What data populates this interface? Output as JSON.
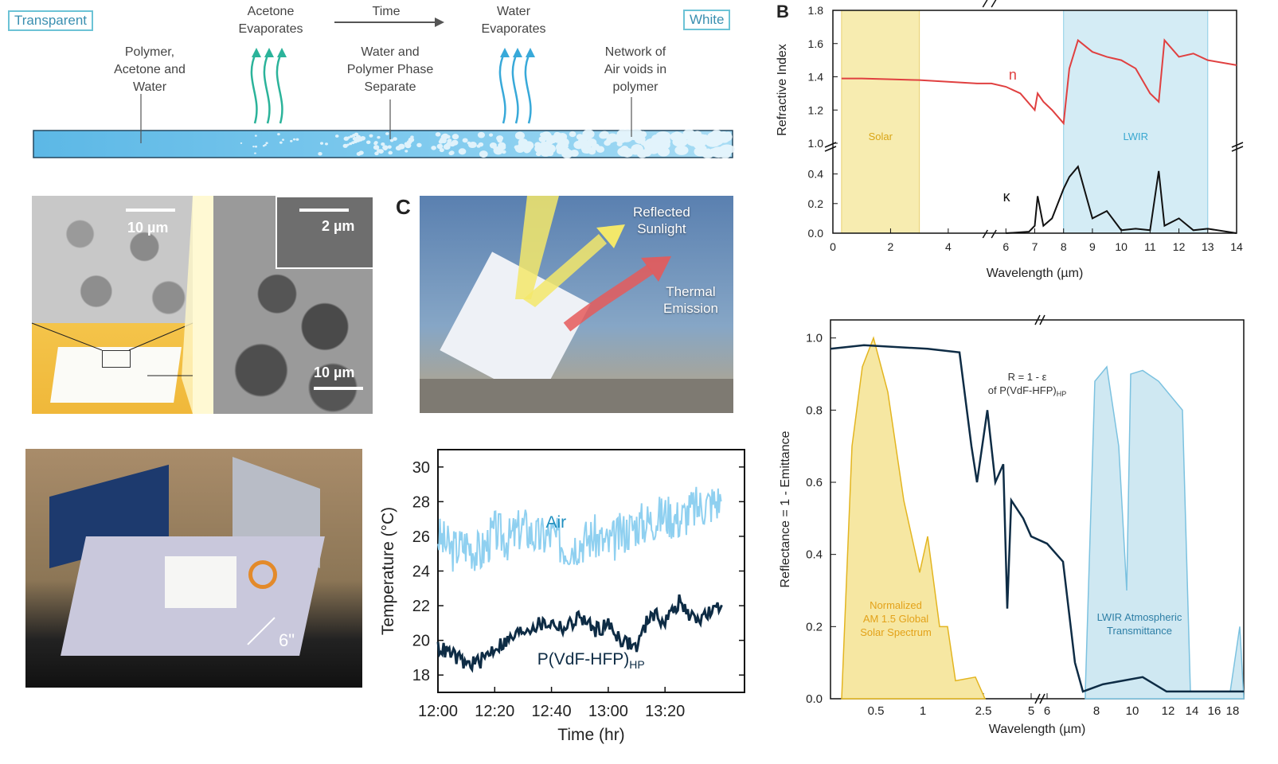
{
  "panel_a": {
    "left_label": "Transparent",
    "right_label": "White",
    "time_label": "Time",
    "step1": [
      "Polymer,",
      "Acetone and",
      "Water"
    ],
    "step2_top": [
      "Acetone",
      "Evaporates"
    ],
    "step3": [
      "Water and",
      "Polymer Phase",
      "Separate"
    ],
    "step4_top": [
      "Water",
      "Evaporates"
    ],
    "step5": [
      "Network of",
      "Air voids in",
      "polymer"
    ],
    "sem_scale_1": "10 µm",
    "sem_scale_2": "2 µm",
    "sem_scale_3": "10 µm",
    "ruler_label": "6\""
  },
  "panel_c": {
    "letter": "C",
    "reflected": [
      "Reflected",
      "Sunlight"
    ],
    "thermal": [
      "Thermal",
      "Emission"
    ]
  },
  "chart_data": [
    {
      "type": "line",
      "xlabel": "Time (hr)",
      "ylabel": "Temperature (°C)",
      "x_ticks": [
        "12:00",
        "12:20",
        "12:40",
        "13:00",
        "13:20"
      ],
      "ylim": [
        17,
        31
      ],
      "y_ticks": [
        18,
        20,
        22,
        24,
        26,
        28,
        30
      ],
      "series": [
        {
          "name": "Air",
          "color": "#8fd0f0",
          "x_minutes": [
            0,
            5,
            10,
            15,
            20,
            25,
            30,
            35,
            40,
            45,
            50,
            55,
            60,
            65,
            70,
            75,
            80,
            85,
            90,
            95,
            100
          ],
          "values": [
            26.0,
            25.2,
            25.6,
            25.0,
            26.3,
            25.8,
            26.6,
            25.9,
            26.1,
            25.4,
            25.7,
            26.0,
            25.5,
            26.2,
            26.7,
            26.9,
            27.3,
            27.0,
            27.6,
            27.9,
            28.1
          ]
        },
        {
          "name": "P(VdF-HFP)",
          "name_sub": "HP",
          "color": "#0e2c45",
          "x_minutes": [
            0,
            5,
            10,
            15,
            20,
            25,
            30,
            35,
            40,
            45,
            50,
            55,
            60,
            65,
            70,
            75,
            80,
            85,
            90,
            95,
            100
          ],
          "values": [
            19.6,
            19.2,
            18.6,
            18.8,
            19.6,
            20.0,
            20.6,
            20.9,
            21.0,
            20.7,
            21.4,
            20.6,
            20.9,
            20.0,
            19.6,
            21.6,
            21.1,
            22.2,
            21.2,
            21.5,
            21.9
          ]
        }
      ]
    },
    {
      "type": "line",
      "panel": "B",
      "xlabel": "Wavelength (µm)",
      "ylabel": "Refractive Index",
      "x_ticks": [
        0,
        2,
        4,
        6,
        7,
        8,
        9,
        10,
        11,
        12,
        13,
        14
      ],
      "n_ticks": [
        1.0,
        1.2,
        1.4,
        1.6,
        1.8
      ],
      "k_ticks": [
        0.0,
        0.2,
        0.4
      ],
      "bands": [
        {
          "label": "Solar",
          "from": 0.3,
          "to": 3.0,
          "color": "#f7ecb0"
        },
        {
          "label": "LWIR",
          "from": 8.0,
          "to": 13.0,
          "color": "#d4ecf5"
        }
      ],
      "series": [
        {
          "name": "n",
          "color": "#e04040",
          "x": [
            0.3,
            1,
            2,
            3,
            4,
            5,
            5.5,
            6,
            6.5,
            7,
            7.1,
            7.3,
            7.6,
            8,
            8.2,
            8.5,
            9,
            9.5,
            10,
            10.5,
            11,
            11.3,
            11.5,
            12,
            12.5,
            13,
            14
          ],
          "values": [
            1.39,
            1.39,
            1.385,
            1.38,
            1.37,
            1.36,
            1.36,
            1.34,
            1.3,
            1.2,
            1.3,
            1.25,
            1.2,
            1.12,
            1.45,
            1.62,
            1.55,
            1.52,
            1.5,
            1.45,
            1.3,
            1.25,
            1.62,
            1.52,
            1.54,
            1.5,
            1.47
          ]
        },
        {
          "name": "κ",
          "color": "#111111",
          "x": [
            6,
            6.8,
            7,
            7.1,
            7.3,
            7.6,
            8,
            8.2,
            8.5,
            9,
            9.5,
            10,
            10.5,
            11,
            11.3,
            11.5,
            12,
            12.5,
            13,
            14
          ],
          "values": [
            0.0,
            0.01,
            0.05,
            0.25,
            0.05,
            0.1,
            0.3,
            0.38,
            0.45,
            0.1,
            0.15,
            0.02,
            0.03,
            0.02,
            0.42,
            0.05,
            0.1,
            0.02,
            0.03,
            0.0
          ]
        }
      ]
    },
    {
      "type": "line",
      "xlabel": "Wavelength (µm)",
      "ylabel": "Reflectance = 1 - Emittance",
      "x_ticks": [
        "0.5",
        "1",
        "2.5",
        "5",
        "6",
        "8",
        "10",
        "12",
        "14",
        "16",
        "18"
      ],
      "y_ticks": [
        0.0,
        0.2,
        0.4,
        0.6,
        0.8,
        1.0
      ],
      "annotations": [
        {
          "text": [
            "R = 1 - ε",
            "of P(VdF-HFP)"
          ],
          "sub": "HP"
        },
        {
          "text": [
            "Normalized",
            "AM 1.5 Global",
            "Solar Spectrum"
          ]
        },
        {
          "text": [
            "LWIR Atmospheric",
            "Transmittance"
          ]
        }
      ],
      "series": [
        {
          "name": "R = 1 - ε of P(VdF-HFP)HP",
          "color": "#0e2c45"
        },
        {
          "name": "Normalized AM 1.5 Global Solar Spectrum",
          "color": "#e3b520"
        },
        {
          "name": "LWIR Atmospheric Transmittance",
          "color": "#7cc2e0"
        }
      ]
    }
  ],
  "labels": {
    "panel_b": "B",
    "air": "Air",
    "pvdf": "P(VdF-HFP)",
    "pvdf_sub": "HP",
    "n": "n",
    "kappa": "κ",
    "solar": "Solar",
    "lwir": "LWIR"
  }
}
